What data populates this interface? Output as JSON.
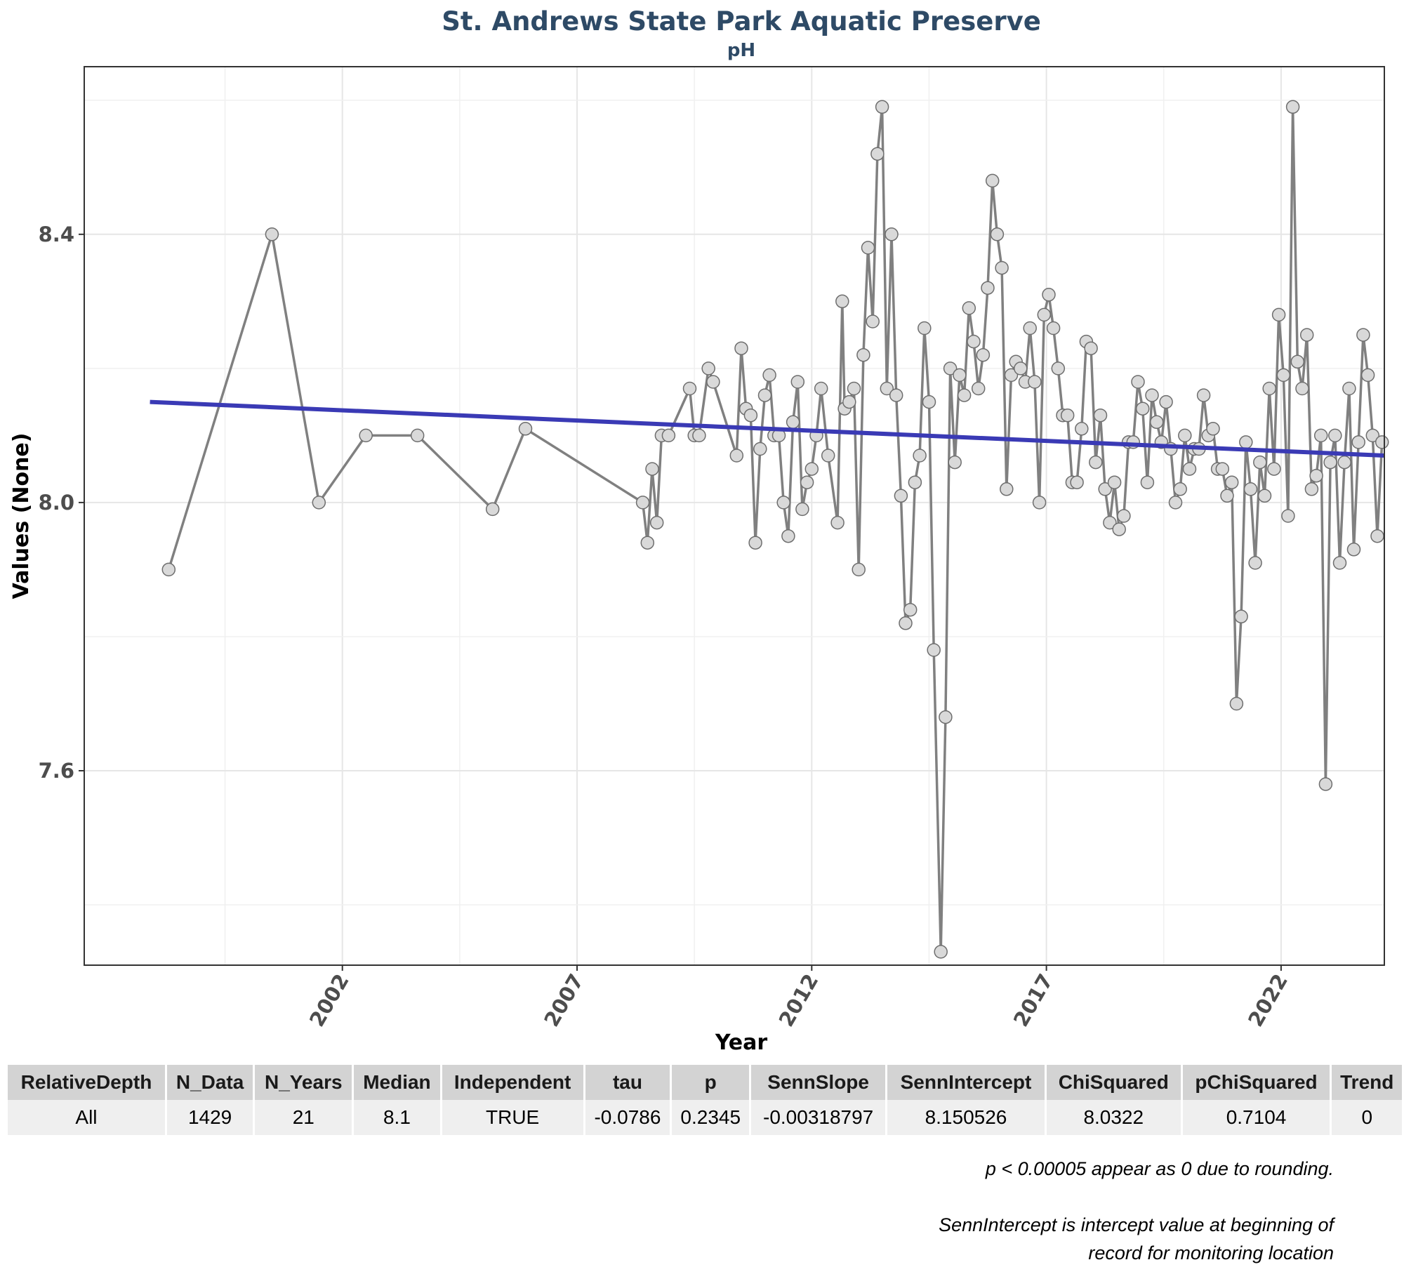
{
  "chart_data": {
    "type": "line",
    "title": "St. Andrews State Park Aquatic Preserve",
    "subtitle": "pH",
    "xlabel": "Year",
    "ylabel": "Values (None)",
    "x_ticks": [
      "2002",
      "2007",
      "2012",
      "2017",
      "2022"
    ],
    "y_ticks": [
      "7.6",
      "8.0",
      "8.4"
    ],
    "xlim": [
      1996.5,
      2024.2
    ],
    "ylim": [
      7.31,
      8.65
    ],
    "grid": true,
    "series": [
      {
        "type": "line-with-points",
        "color": "#808080",
        "points": [
          [
            1998.3,
            7.9
          ],
          [
            2000.5,
            8.4
          ],
          [
            2001.5,
            8.0
          ],
          [
            2002.5,
            8.1
          ],
          [
            2003.6,
            8.1
          ],
          [
            2005.2,
            7.99
          ],
          [
            2005.9,
            8.11
          ],
          [
            2008.4,
            8.0
          ],
          [
            2008.5,
            7.94
          ],
          [
            2008.6,
            8.05
          ],
          [
            2008.7,
            7.97
          ],
          [
            2008.8,
            8.1
          ],
          [
            2008.95,
            8.1
          ],
          [
            2009.4,
            8.17
          ],
          [
            2009.5,
            8.1
          ],
          [
            2009.6,
            8.1
          ],
          [
            2009.8,
            8.2
          ],
          [
            2009.9,
            8.18
          ],
          [
            2010.4,
            8.07
          ],
          [
            2010.5,
            8.23
          ],
          [
            2010.6,
            8.14
          ],
          [
            2010.7,
            8.13
          ],
          [
            2010.8,
            7.94
          ],
          [
            2010.9,
            8.08
          ],
          [
            2011.0,
            8.16
          ],
          [
            2011.1,
            8.19
          ],
          [
            2011.2,
            8.1
          ],
          [
            2011.3,
            8.1
          ],
          [
            2011.4,
            8.0
          ],
          [
            2011.5,
            7.95
          ],
          [
            2011.6,
            8.12
          ],
          [
            2011.7,
            8.18
          ],
          [
            2011.8,
            7.99
          ],
          [
            2011.9,
            8.03
          ],
          [
            2012.0,
            8.05
          ],
          [
            2012.1,
            8.1
          ],
          [
            2012.2,
            8.17
          ],
          [
            2012.35,
            8.07
          ],
          [
            2012.55,
            7.97
          ],
          [
            2012.65,
            8.3
          ],
          [
            2012.7,
            8.14
          ],
          [
            2012.8,
            8.15
          ],
          [
            2012.9,
            8.17
          ],
          [
            2013.0,
            7.9
          ],
          [
            2013.1,
            8.22
          ],
          [
            2013.2,
            8.38
          ],
          [
            2013.3,
            8.27
          ],
          [
            2013.4,
            8.52
          ],
          [
            2013.5,
            8.59
          ],
          [
            2013.6,
            8.17
          ],
          [
            2013.7,
            8.4
          ],
          [
            2013.8,
            8.16
          ],
          [
            2013.9,
            8.01
          ],
          [
            2014.0,
            7.82
          ],
          [
            2014.1,
            7.84
          ],
          [
            2014.2,
            8.03
          ],
          [
            2014.3,
            8.07
          ],
          [
            2014.4,
            8.26
          ],
          [
            2014.5,
            8.15
          ],
          [
            2014.6,
            7.78
          ],
          [
            2014.75,
            7.33
          ],
          [
            2014.85,
            7.68
          ],
          [
            2014.95,
            8.2
          ],
          [
            2015.05,
            8.06
          ],
          [
            2015.15,
            8.19
          ],
          [
            2015.25,
            8.16
          ],
          [
            2015.35,
            8.29
          ],
          [
            2015.45,
            8.24
          ],
          [
            2015.55,
            8.17
          ],
          [
            2015.65,
            8.22
          ],
          [
            2015.75,
            8.32
          ],
          [
            2015.85,
            8.48
          ],
          [
            2015.95,
            8.4
          ],
          [
            2016.05,
            8.35
          ],
          [
            2016.15,
            8.02
          ],
          [
            2016.25,
            8.19
          ],
          [
            2016.35,
            8.21
          ],
          [
            2016.45,
            8.2
          ],
          [
            2016.55,
            8.18
          ],
          [
            2016.65,
            8.26
          ],
          [
            2016.75,
            8.18
          ],
          [
            2016.85,
            8.0
          ],
          [
            2016.95,
            8.28
          ],
          [
            2017.05,
            8.31
          ],
          [
            2017.15,
            8.26
          ],
          [
            2017.25,
            8.2
          ],
          [
            2017.35,
            8.13
          ],
          [
            2017.45,
            8.13
          ],
          [
            2017.55,
            8.03
          ],
          [
            2017.65,
            8.03
          ],
          [
            2017.75,
            8.11
          ],
          [
            2017.85,
            8.24
          ],
          [
            2017.95,
            8.23
          ],
          [
            2018.05,
            8.06
          ],
          [
            2018.15,
            8.13
          ],
          [
            2018.25,
            8.02
          ],
          [
            2018.35,
            7.97
          ],
          [
            2018.45,
            8.03
          ],
          [
            2018.55,
            7.96
          ],
          [
            2018.65,
            7.98
          ],
          [
            2018.75,
            8.09
          ],
          [
            2018.85,
            8.09
          ],
          [
            2018.95,
            8.18
          ],
          [
            2019.05,
            8.14
          ],
          [
            2019.15,
            8.03
          ],
          [
            2019.25,
            8.16
          ],
          [
            2019.35,
            8.12
          ],
          [
            2019.45,
            8.09
          ],
          [
            2019.55,
            8.15
          ],
          [
            2019.65,
            8.08
          ],
          [
            2019.75,
            8.0
          ],
          [
            2019.85,
            8.02
          ],
          [
            2019.95,
            8.1
          ],
          [
            2020.05,
            8.05
          ],
          [
            2020.15,
            8.08
          ],
          [
            2020.25,
            8.08
          ],
          [
            2020.35,
            8.16
          ],
          [
            2020.45,
            8.1
          ],
          [
            2020.55,
            8.11
          ],
          [
            2020.65,
            8.05
          ],
          [
            2020.75,
            8.05
          ],
          [
            2020.85,
            8.01
          ],
          [
            2020.95,
            8.03
          ],
          [
            2021.05,
            7.7
          ],
          [
            2021.15,
            7.83
          ],
          [
            2021.25,
            8.09
          ],
          [
            2021.35,
            8.02
          ],
          [
            2021.45,
            7.91
          ],
          [
            2021.55,
            8.06
          ],
          [
            2021.65,
            8.01
          ],
          [
            2021.75,
            8.17
          ],
          [
            2021.85,
            8.05
          ],
          [
            2021.95,
            8.28
          ],
          [
            2022.05,
            8.19
          ],
          [
            2022.15,
            7.98
          ],
          [
            2022.25,
            8.59
          ],
          [
            2022.35,
            8.21
          ],
          [
            2022.45,
            8.17
          ],
          [
            2022.55,
            8.25
          ],
          [
            2022.65,
            8.02
          ],
          [
            2022.75,
            8.04
          ],
          [
            2022.85,
            8.1
          ],
          [
            2022.95,
            7.58
          ],
          [
            2023.05,
            8.06
          ],
          [
            2023.15,
            8.1
          ],
          [
            2023.25,
            7.91
          ],
          [
            2023.35,
            8.06
          ],
          [
            2023.45,
            8.17
          ],
          [
            2023.55,
            7.93
          ],
          [
            2023.65,
            8.09
          ],
          [
            2023.75,
            8.25
          ],
          [
            2023.85,
            8.19
          ],
          [
            2023.95,
            8.1
          ],
          [
            2024.05,
            7.95
          ],
          [
            2024.15,
            8.09
          ]
        ]
      },
      {
        "type": "trend-line",
        "color": "#3a3ab5",
        "points": [
          [
            1997.9,
            8.15
          ],
          [
            2024.2,
            8.07
          ]
        ]
      }
    ]
  },
  "table": {
    "headers": [
      "RelativeDepth",
      "N_Data",
      "N_Years",
      "Median",
      "Independent",
      "tau",
      "p",
      "SennSlope",
      "SennIntercept",
      "ChiSquared",
      "pChiSquared",
      "Trend"
    ],
    "rows": [
      [
        "All",
        "1429",
        "21",
        "8.1",
        "TRUE",
        "-0.0786",
        "0.2345",
        "-0.00318797",
        "8.150526",
        "8.0322",
        "0.7104",
        "0"
      ]
    ]
  },
  "footnotes": {
    "rounding": "p < 0.00005 appear as 0 due to rounding.",
    "intercept_line1": "SennIntercept is intercept value at beginning of",
    "intercept_line2": "record for monitoring location"
  }
}
